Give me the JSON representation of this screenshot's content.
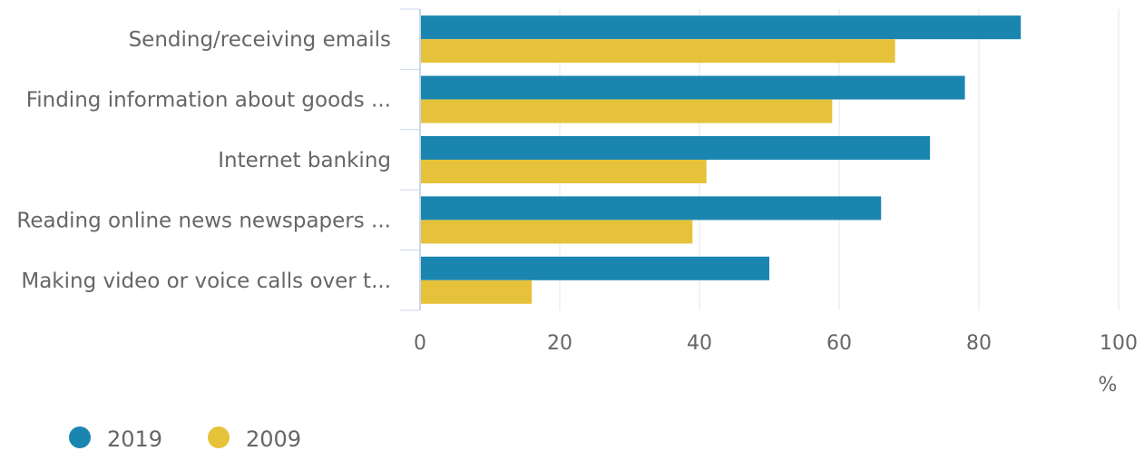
{
  "chart_data": {
    "type": "bar",
    "orientation": "horizontal",
    "categories": [
      "Sending/receiving emails",
      "Finding information about goods ...",
      "Internet banking",
      "Reading online news newspapers ...",
      "Making video or voice calls over t..."
    ],
    "series": [
      {
        "name": "2019",
        "color": "#1a86b0",
        "values": [
          86,
          78,
          73,
          66,
          50
        ]
      },
      {
        "name": "2009",
        "color": "#e6c23a",
        "values": [
          68,
          59,
          41,
          39,
          16
        ]
      }
    ],
    "xlim": [
      0,
      100
    ],
    "xticks": [
      "0",
      "20",
      "40",
      "60",
      "80",
      "100"
    ],
    "xunit": "%",
    "grid": true,
    "legend": "bottom-left"
  },
  "colors": {
    "grid": "#e6e6e6",
    "axis": "#ccd6eb",
    "text": "#666666"
  }
}
